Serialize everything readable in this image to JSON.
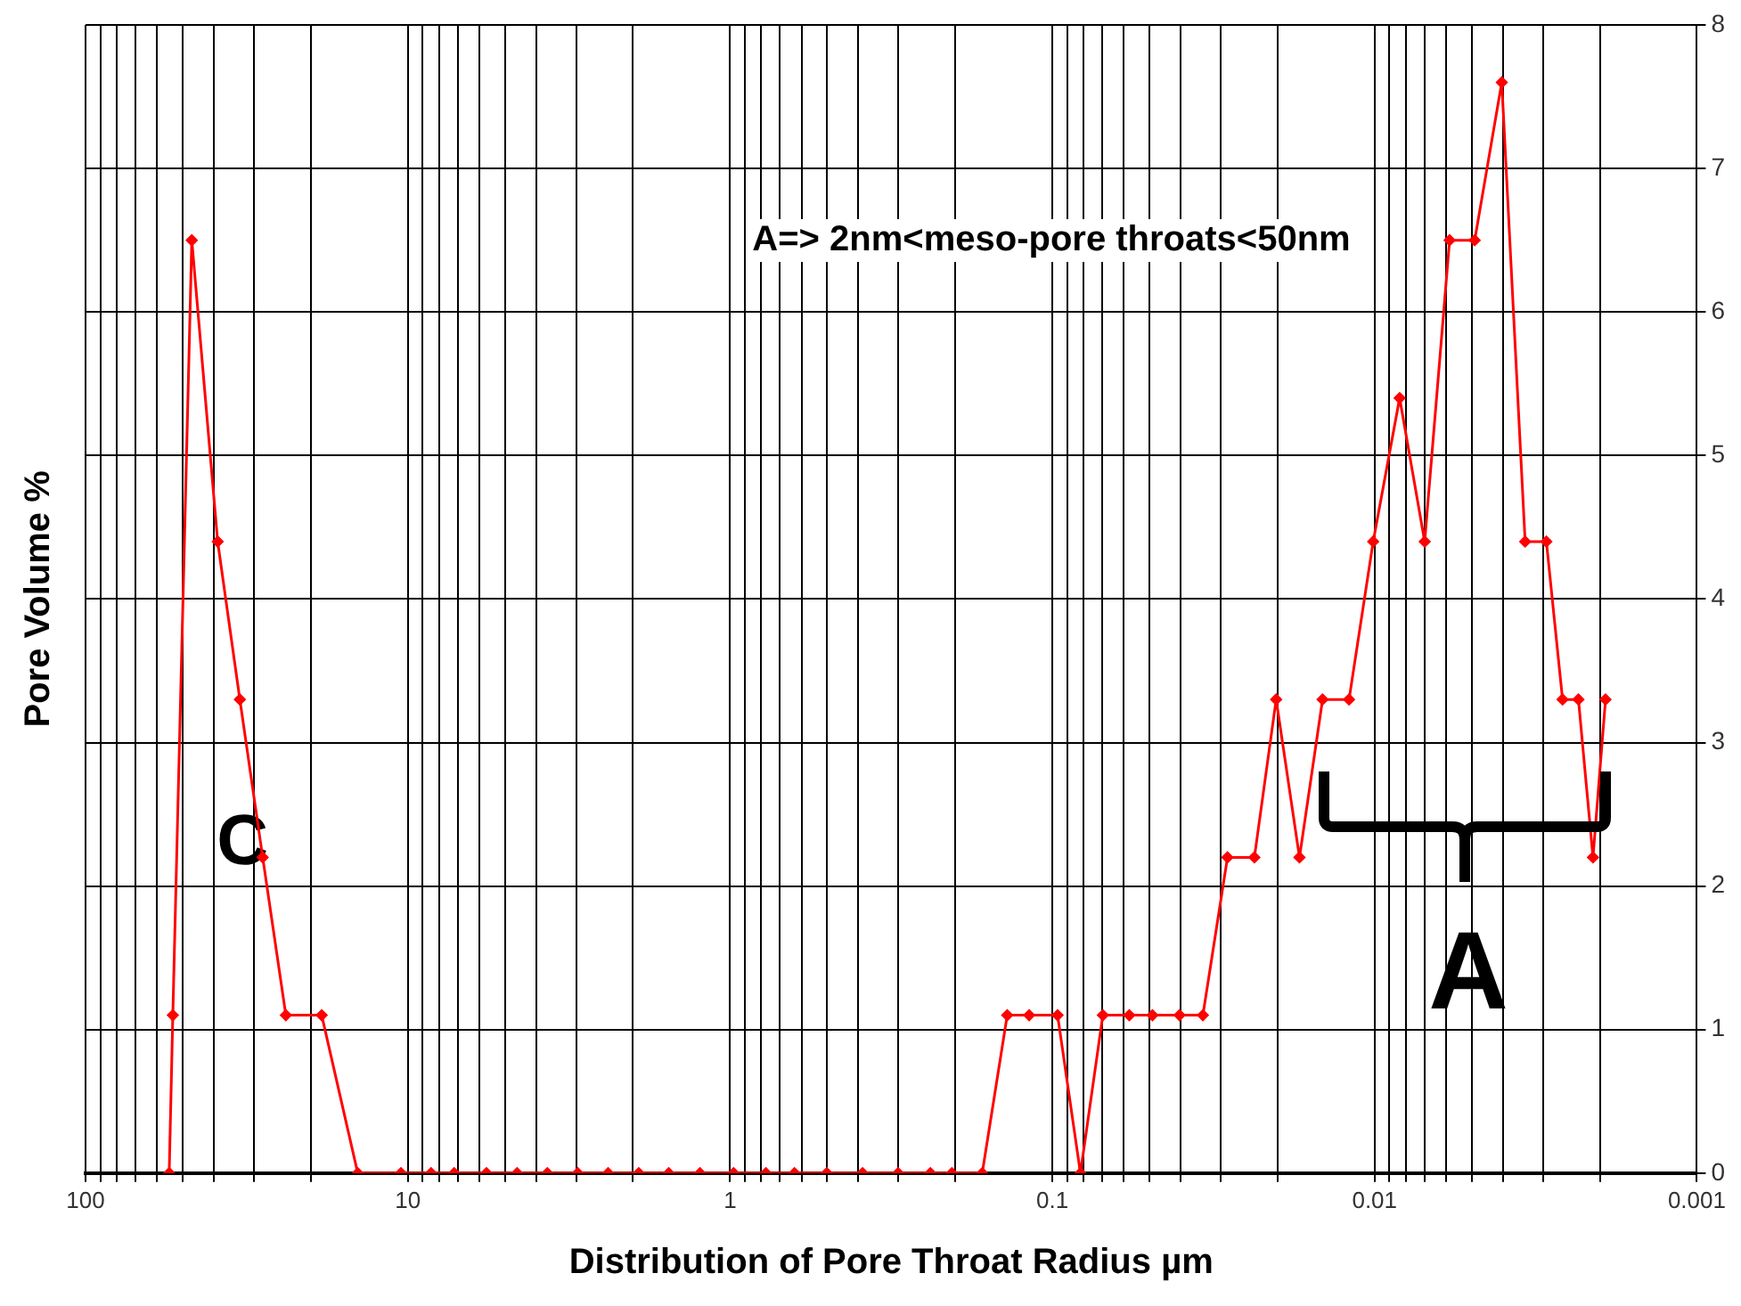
{
  "chart_data": {
    "type": "line",
    "xlabel": "Distribution of Pore Throat Radius µm",
    "ylabel": "Pore Volume %",
    "annotations": [
      "A=> 2nm<meso-pore throats<50nm",
      "C",
      "A"
    ],
    "x": [
      55,
      53.6,
      46.8,
      38.9,
      33.2,
      28.2,
      23.9,
      18.5,
      14.3,
      10.5,
      8.47,
      7.18,
      5.7,
      4.58,
      3.69,
      2.97,
      2.39,
      1.92,
      1.55,
      1.24,
      0.975,
      0.774,
      0.631,
      0.501,
      0.388,
      0.301,
      0.239,
      0.205,
      0.165,
      0.138,
      0.118,
      0.0963,
      0.0818,
      0.0697,
      0.0577,
      0.0489,
      0.0403,
      0.0341,
      0.0286,
      0.0236,
      0.0202,
      0.0171,
      0.0145,
      0.012,
      0.0101,
      0.00836,
      0.00699,
      0.00585,
      0.00489,
      0.00403,
      0.00341,
      0.00293,
      0.00261,
      0.00233,
      0.0021,
      0.00192
    ],
    "series": [
      {
        "color": "#ff0000",
        "values": [
          0,
          1.1,
          6.5,
          4.4,
          3.3,
          2.2,
          1.1,
          1.1,
          0,
          0,
          0,
          0,
          0,
          0,
          0,
          0,
          0,
          0,
          0,
          0,
          0,
          0,
          0,
          0,
          0,
          0,
          0,
          0,
          0,
          1.1,
          1.1,
          1.1,
          0,
          1.1,
          1.1,
          1.1,
          1.1,
          1.1,
          2.2,
          2.2,
          3.3,
          2.2,
          3.3,
          3.3,
          4.4,
          5.4,
          4.4,
          6.5,
          6.5,
          7.6,
          4.4,
          4.4,
          3.3,
          3.3,
          2.2,
          3.3
        ]
      }
    ],
    "log": "x",
    "xlim": [
      100,
      0.001
    ],
    "xticks": [
      100,
      {
        "value": 90,
        "label": null
      },
      {
        "value": 80,
        "label": null
      },
      {
        "value": 70,
        "label": null
      },
      {
        "value": 60,
        "label": null
      },
      {
        "value": 50,
        "label": null
      },
      {
        "value": 40,
        "label": null
      },
      {
        "value": 30,
        "label": null
      },
      {
        "value": 20,
        "label": null
      },
      10,
      {
        "value": 9,
        "label": null
      },
      {
        "value": 8,
        "label": null
      },
      {
        "value": 7,
        "label": null
      },
      {
        "value": 6,
        "label": null
      },
      {
        "value": 5,
        "label": null
      },
      {
        "value": 4,
        "label": null
      },
      {
        "value": 3,
        "label": null
      },
      {
        "value": 2,
        "label": null
      },
      1,
      {
        "value": 0.9,
        "label": null
      },
      {
        "value": 0.8,
        "label": null
      },
      {
        "value": 0.7,
        "label": null
      },
      {
        "value": 0.6,
        "label": null
      },
      {
        "value": 0.5,
        "label": null
      },
      {
        "value": 0.4,
        "label": null
      },
      {
        "value": 0.3,
        "label": null
      },
      {
        "value": 0.2,
        "label": null
      },
      0.1,
      {
        "value": 0.09,
        "label": null
      },
      {
        "value": 0.08,
        "label": null
      },
      {
        "value": 0.07,
        "label": null
      },
      {
        "value": 0.06,
        "label": null
      },
      {
        "value": 0.05,
        "label": null
      },
      {
        "value": 0.04,
        "label": null
      },
      {
        "value": 0.03,
        "label": null
      },
      {
        "value": 0.02,
        "label": null
      },
      0.01,
      {
        "value": 0.009,
        "label": null
      },
      {
        "value": 0.008,
        "label": null
      },
      {
        "value": 0.007,
        "label": null
      },
      {
        "value": 0.006,
        "label": null
      },
      {
        "value": 0.005,
        "label": null
      },
      {
        "value": 0.004,
        "label": null
      },
      {
        "value": 0.003,
        "label": null
      },
      {
        "value": 0.002,
        "label": null
      },
      0.001
    ],
    "ylim": [
      0,
      8
    ],
    "yticks": [
      0,
      1,
      2,
      3,
      4,
      5,
      6,
      7,
      8
    ],
    "grid": true,
    "legend": false,
    "marker": "diamond",
    "line_style": "solid"
  }
}
